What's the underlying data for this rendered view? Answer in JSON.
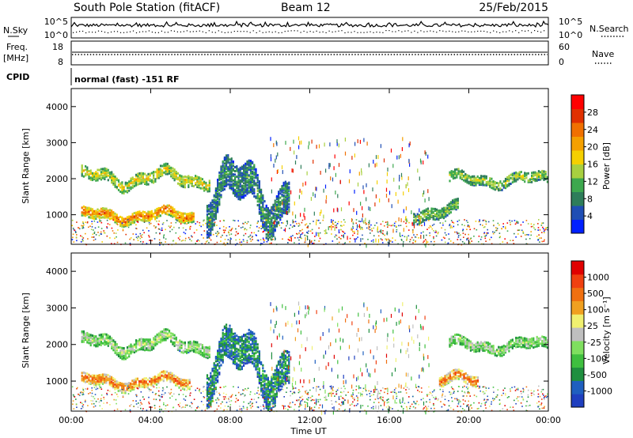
{
  "header": {
    "station": "South Pole Station (fitACF)",
    "beam": "Beam 12",
    "date": "25/Feb/2015"
  },
  "noise_panel": {
    "left_label": "N.Sky",
    "right_label": "N.Search",
    "left_ticks": [
      "10^5",
      "10^0"
    ],
    "right_ticks": [
      "10^5",
      "10^0"
    ]
  },
  "freq_panel": {
    "left_label_1": "Freq.",
    "left_label_2": "[MHz]",
    "left_ticks": [
      "18",
      "8"
    ],
    "right_label": "Nave",
    "right_ticks": [
      "60",
      "0"
    ]
  },
  "cpid_panel": {
    "label": "CPID",
    "text": "normal (fast) -151 RF"
  },
  "chart_data": [
    {
      "type": "heatmap",
      "name": "power",
      "ylabel": "Slant Range [km]",
      "xlabel": "",
      "ylim": [
        180,
        4500
      ],
      "y_ticks": [
        "1000",
        "2000",
        "3000",
        "4000"
      ],
      "colorbar": {
        "label": "Power [dB]",
        "ticks": [
          "4",
          "8",
          "12",
          "16",
          "20",
          "24",
          "28"
        ],
        "colors": [
          "#0020ff",
          "#1f4eb4",
          "#2e7d5a",
          "#3da84e",
          "#a8d040",
          "#f5d000",
          "#f4a000",
          "#f07000",
          "#e03000",
          "#ff0000"
        ]
      },
      "regions": [
        {
          "t0": 0.5,
          "t1": 7.0,
          "r_mid": 2050,
          "wobble": 180,
          "width": 320,
          "level": 0.55
        },
        {
          "t0": 0.5,
          "t1": 6.2,
          "r_mid": 1000,
          "wobble": 120,
          "width": 260,
          "level": 0.75
        },
        {
          "t0": 19.0,
          "t1": 24.0,
          "r_mid": 2000,
          "wobble": 120,
          "width": 260,
          "level": 0.45
        },
        {
          "t0": 6.8,
          "t1": 11.0,
          "r_mid": 1600,
          "wobble": 600,
          "width": 900,
          "level": 0.3
        },
        {
          "t0": 17.2,
          "t1": 19.5,
          "r_mid": 1100,
          "wobble": 150,
          "width": 300,
          "level": 0.4
        }
      ]
    },
    {
      "type": "heatmap",
      "name": "velocity",
      "ylabel": "Slant Range [km]",
      "xlabel": "Time UT",
      "ylim": [
        180,
        4500
      ],
      "y_ticks": [
        "1000",
        "2000",
        "3000",
        "4000"
      ],
      "x_ticks": [
        "00:00",
        "04:00",
        "08:00",
        "12:00",
        "16:00",
        "20:00",
        "00:00"
      ],
      "colorbar": {
        "label": "Velocity [m s⁻¹]",
        "ticks": [
          "1000",
          "500",
          "100",
          "25",
          "-25",
          "-100",
          "-500",
          "-1000"
        ],
        "colors": [
          "#1f3fbf",
          "#1f5fbf",
          "#1f8f3f",
          "#3fbf3f",
          "#7fdf5f",
          "#bfbfbf",
          "#f0f070",
          "#f0a020",
          "#f07010",
          "#f04010",
          "#e00000"
        ]
      },
      "regions": [
        {
          "t0": 0.5,
          "t1": 7.0,
          "r_mid": 2050,
          "wobble": 180,
          "width": 320,
          "level": 0.5
        },
        {
          "t0": 0.5,
          "t1": 6.0,
          "r_mid": 1000,
          "wobble": 120,
          "width": 260,
          "level": 0.82
        },
        {
          "t0": 19.0,
          "t1": 24.0,
          "r_mid": 2000,
          "wobble": 120,
          "width": 260,
          "level": 0.5
        },
        {
          "t0": 6.8,
          "t1": 11.0,
          "r_mid": 1500,
          "wobble": 600,
          "width": 900,
          "level": 0.25
        },
        {
          "t0": 18.5,
          "t1": 20.5,
          "r_mid": 1050,
          "wobble": 120,
          "width": 280,
          "level": 0.82
        }
      ]
    }
  ]
}
